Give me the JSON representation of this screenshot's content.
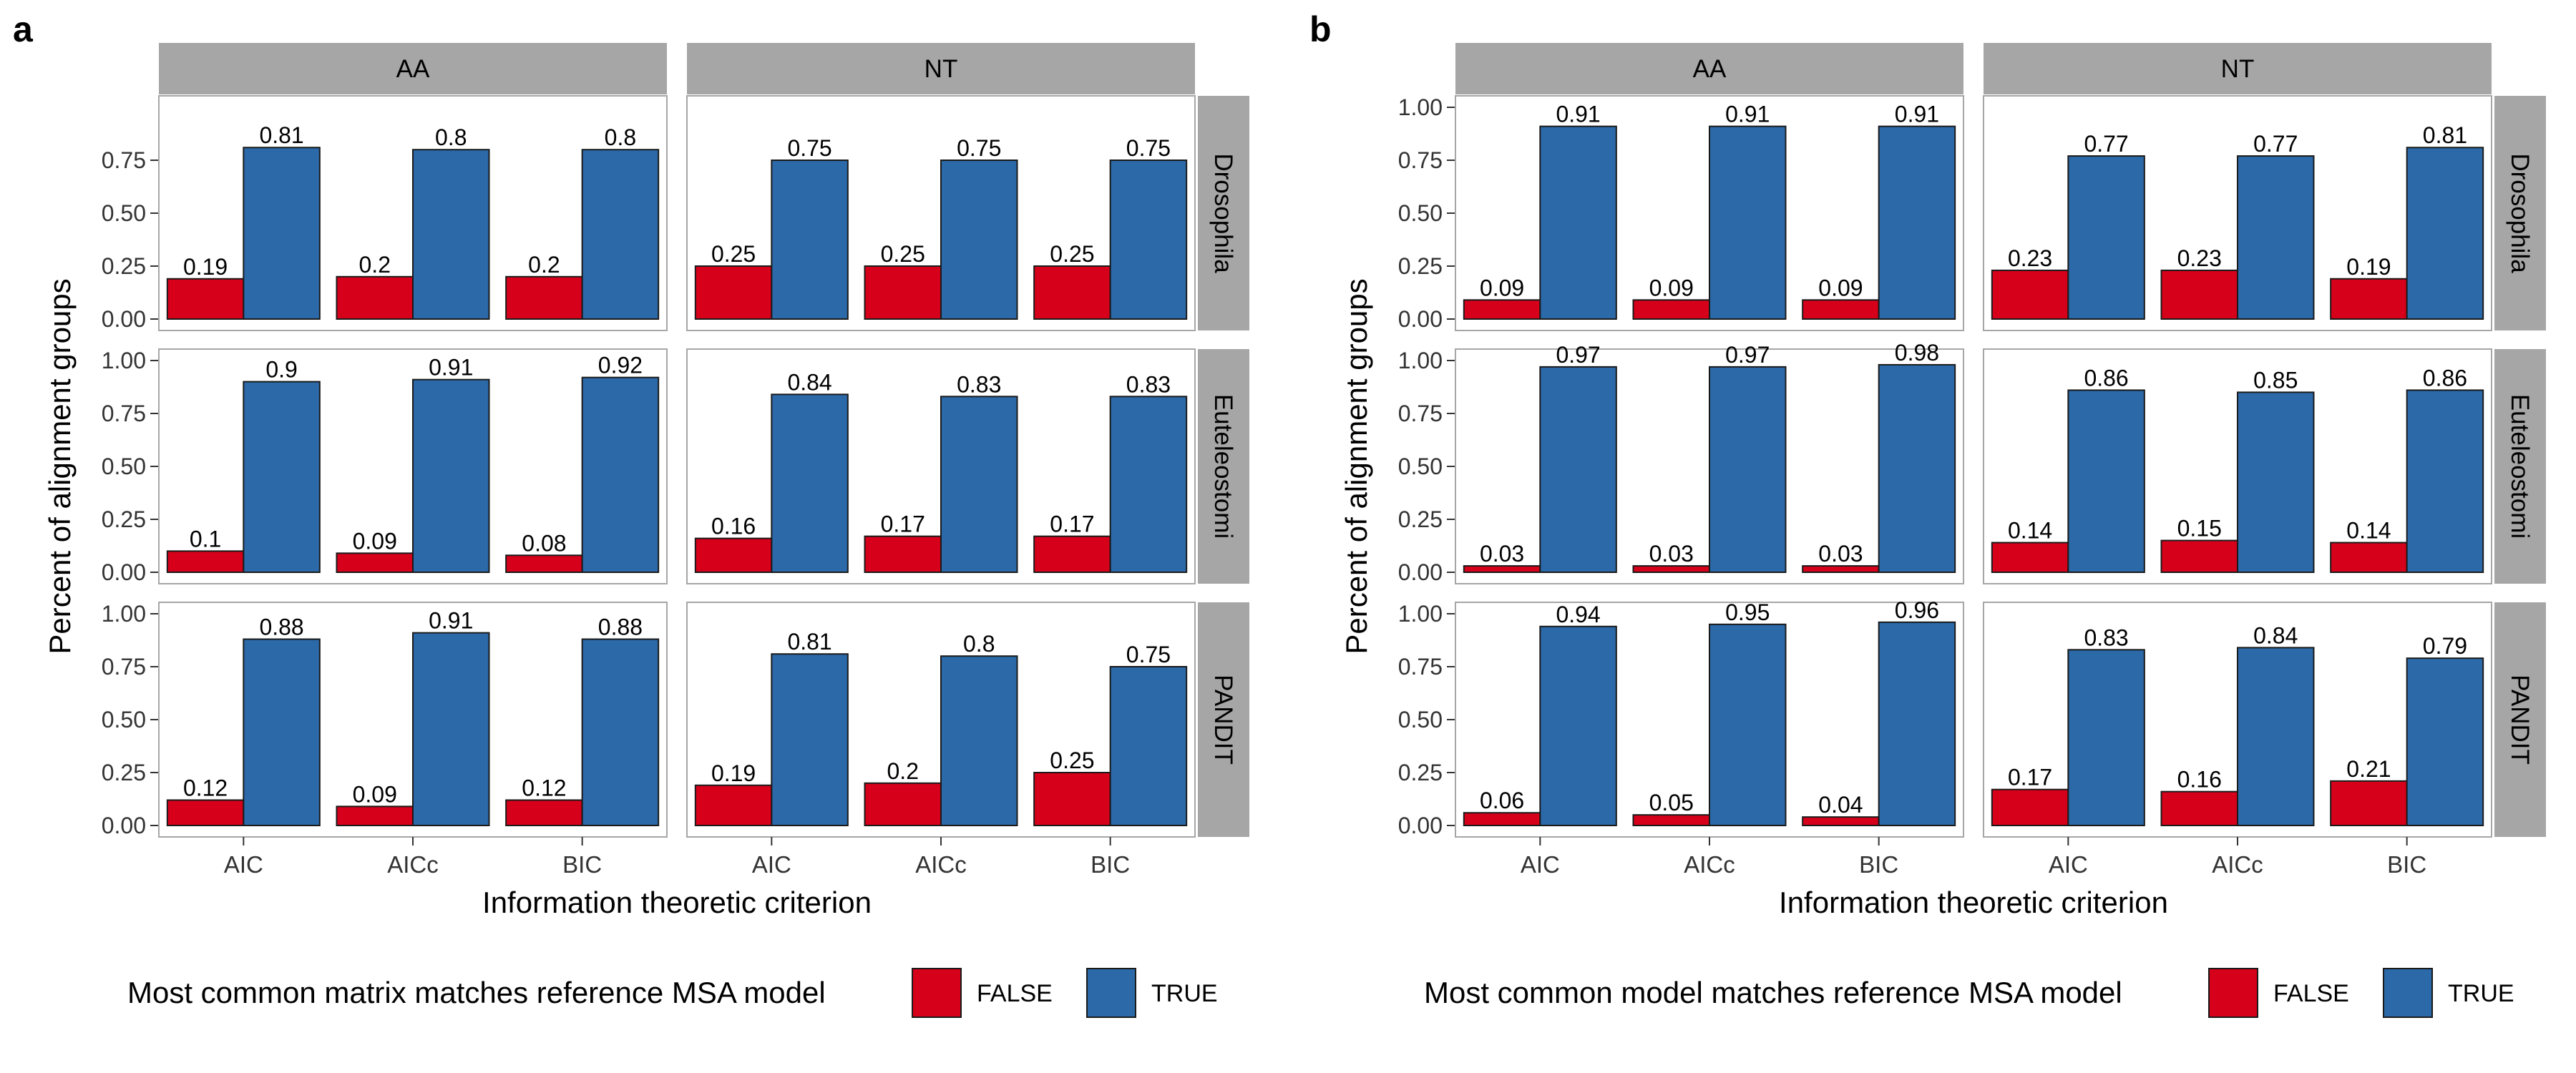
{
  "colors": {
    "false_fill": "#D7001A",
    "true_fill": "#2B69A8",
    "strip_fill": "#A6A6A6",
    "panel_border": "#A6A6A6",
    "bar_edge": "#1a1a1a"
  },
  "chart_data": [
    {
      "type": "bar",
      "panel_letter": "a",
      "facet_columns": [
        "AA",
        "NT"
      ],
      "facet_rows": [
        "Drosophila",
        "Euteleostomi",
        "PANDIT"
      ],
      "categories": [
        "AIC",
        "AICc",
        "BIC"
      ],
      "xlabel": "Information theoretic criterion",
      "ylabel": "Percent of alignment groups",
      "yticks_per_row": [
        [
          "0.00",
          "0.25",
          "0.50",
          "0.75"
        ],
        [
          "0.00",
          "0.25",
          "0.50",
          "0.75",
          "1.00"
        ],
        [
          "0.00",
          "0.25",
          "0.50",
          "0.75",
          "1.00"
        ]
      ],
      "ylim": [
        0,
        1
      ],
      "legend": {
        "title": "Most common matrix matches reference MSA model",
        "labels": [
          "FALSE",
          "TRUE"
        ],
        "position": "bottom"
      },
      "facets": [
        {
          "row": "Drosophila",
          "col": "AA",
          "series": [
            {
              "name": "FALSE",
              "values": [
                0.19,
                0.2,
                0.2
              ]
            },
            {
              "name": "TRUE",
              "values": [
                0.81,
                0.8,
                0.8
              ]
            }
          ]
        },
        {
          "row": "Drosophila",
          "col": "NT",
          "series": [
            {
              "name": "FALSE",
              "values": [
                0.25,
                0.25,
                0.25
              ]
            },
            {
              "name": "TRUE",
              "values": [
                0.75,
                0.75,
                0.75
              ]
            }
          ]
        },
        {
          "row": "Euteleostomi",
          "col": "AA",
          "series": [
            {
              "name": "FALSE",
              "values": [
                0.1,
                0.09,
                0.08
              ]
            },
            {
              "name": "TRUE",
              "values": [
                0.9,
                0.91,
                0.92
              ]
            }
          ]
        },
        {
          "row": "Euteleostomi",
          "col": "NT",
          "series": [
            {
              "name": "FALSE",
              "values": [
                0.16,
                0.17,
                0.17
              ]
            },
            {
              "name": "TRUE",
              "values": [
                0.84,
                0.83,
                0.83
              ]
            }
          ]
        },
        {
          "row": "PANDIT",
          "col": "AA",
          "series": [
            {
              "name": "FALSE",
              "values": [
                0.12,
                0.09,
                0.12
              ]
            },
            {
              "name": "TRUE",
              "values": [
                0.88,
                0.91,
                0.88
              ]
            }
          ]
        },
        {
          "row": "PANDIT",
          "col": "NT",
          "series": [
            {
              "name": "FALSE",
              "values": [
                0.19,
                0.2,
                0.25
              ]
            },
            {
              "name": "TRUE",
              "values": [
                0.81,
                0.8,
                0.75
              ]
            }
          ]
        }
      ]
    },
    {
      "type": "bar",
      "panel_letter": "b",
      "facet_columns": [
        "AA",
        "NT"
      ],
      "facet_rows": [
        "Drosophila",
        "Euteleostomi",
        "PANDIT"
      ],
      "categories": [
        "AIC",
        "AICc",
        "BIC"
      ],
      "xlabel": "Information theoretic criterion",
      "ylabel": "Percent of alignment groups",
      "yticks_per_row": [
        [
          "0.00",
          "0.25",
          "0.50",
          "0.75",
          "1.00"
        ],
        [
          "0.00",
          "0.25",
          "0.50",
          "0.75",
          "1.00"
        ],
        [
          "0.00",
          "0.25",
          "0.50",
          "0.75",
          "1.00"
        ]
      ],
      "ylim": [
        0,
        1
      ],
      "legend": {
        "title": "Most common model matches reference MSA model",
        "labels": [
          "FALSE",
          "TRUE"
        ],
        "position": "bottom"
      },
      "facets": [
        {
          "row": "Drosophila",
          "col": "AA",
          "series": [
            {
              "name": "FALSE",
              "values": [
                0.09,
                0.09,
                0.09
              ]
            },
            {
              "name": "TRUE",
              "values": [
                0.91,
                0.91,
                0.91
              ]
            }
          ]
        },
        {
          "row": "Drosophila",
          "col": "NT",
          "series": [
            {
              "name": "FALSE",
              "values": [
                0.23,
                0.23,
                0.19
              ]
            },
            {
              "name": "TRUE",
              "values": [
                0.77,
                0.77,
                0.81
              ]
            }
          ]
        },
        {
          "row": "Euteleostomi",
          "col": "AA",
          "series": [
            {
              "name": "FALSE",
              "values": [
                0.03,
                0.03,
                0.03
              ]
            },
            {
              "name": "TRUE",
              "values": [
                0.97,
                0.97,
                0.98
              ]
            }
          ]
        },
        {
          "row": "Euteleostomi",
          "col": "NT",
          "series": [
            {
              "name": "FALSE",
              "values": [
                0.14,
                0.15,
                0.14
              ]
            },
            {
              "name": "TRUE",
              "values": [
                0.86,
                0.85,
                0.86
              ]
            }
          ]
        },
        {
          "row": "PANDIT",
          "col": "AA",
          "series": [
            {
              "name": "FALSE",
              "values": [
                0.06,
                0.05,
                0.04
              ]
            },
            {
              "name": "TRUE",
              "values": [
                0.94,
                0.95,
                0.96
              ]
            }
          ]
        },
        {
          "row": "PANDIT",
          "col": "NT",
          "series": [
            {
              "name": "FALSE",
              "values": [
                0.17,
                0.16,
                0.21
              ]
            },
            {
              "name": "TRUE",
              "values": [
                0.83,
                0.84,
                0.79
              ]
            }
          ]
        }
      ]
    }
  ]
}
